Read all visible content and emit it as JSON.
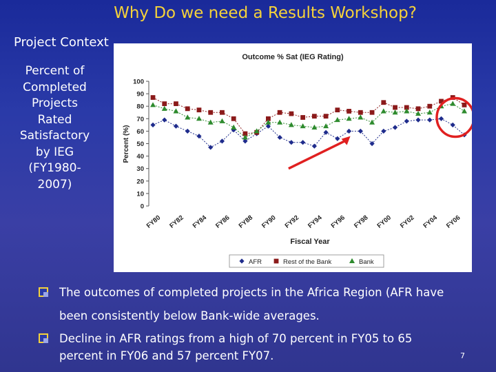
{
  "slide": {
    "title": "Why Do we need a Results Workshop?",
    "subtitle": "Project Context",
    "side_label_lines": [
      "Percent of",
      "Completed",
      "Projects",
      "Rated",
      "Satisfactory",
      "by IEG",
      "(FY1980-",
      "2007)"
    ],
    "bullets": [
      {
        "line1": "The outcomes of completed projects in the Africa Region (AFR have",
        "line2": "been consistently below Bank-wide averages."
      },
      {
        "line1": "Decline in AFR ratings from a high of 70 percent in FY05 to 65",
        "line2": "percent in FY06 and 57 percent FY07."
      }
    ],
    "page_number": "7"
  },
  "chart_data": {
    "type": "line",
    "title": "Outcome % Sat (IEG Rating)",
    "xlabel": "Fiscal Year",
    "ylabel": "Percent (%)",
    "ylim": [
      0,
      100
    ],
    "yticks": [
      0,
      10,
      20,
      30,
      40,
      50,
      60,
      70,
      80,
      90,
      100
    ],
    "x": [
      "FY80",
      "FY81",
      "FY82",
      "FY83",
      "FY84",
      "FY85",
      "FY86",
      "FY87",
      "FY88",
      "FY89",
      "FY90",
      "FY91",
      "FY92",
      "FY93",
      "FY94",
      "FY95",
      "FY96",
      "FY97",
      "FY98",
      "FY99",
      "FY00",
      "FY01",
      "FY02",
      "FY03",
      "FY04",
      "FY05",
      "FY06",
      "FY07"
    ],
    "xtick_labels": [
      "FY80",
      "FY82",
      "FY84",
      "FY86",
      "FY88",
      "FY90",
      "FY92",
      "FY94",
      "FY96",
      "FY98",
      "FY00",
      "FY02",
      "FY04",
      "FY06"
    ],
    "series": [
      {
        "name": "AFR",
        "color": "#1f2c8c",
        "marker": "diamond",
        "values": [
          65,
          69,
          64,
          60,
          56,
          47,
          52,
          61,
          52,
          58,
          64,
          55,
          51,
          51,
          48,
          59,
          54,
          60,
          60,
          50,
          60,
          63,
          68,
          69,
          69,
          70,
          65,
          57
        ]
      },
      {
        "name": "Rest of the Bank",
        "color": "#8b1a1a",
        "marker": "square",
        "values": [
          87,
          82,
          82,
          78,
          77,
          75,
          75,
          70,
          58,
          59,
          70,
          75,
          74,
          71,
          72,
          72,
          77,
          76,
          75,
          75,
          83,
          79,
          79,
          78,
          80,
          84,
          87,
          81
        ]
      },
      {
        "name": "Bank",
        "color": "#2e8b2e",
        "marker": "triangle",
        "values": [
          81,
          78,
          76,
          71,
          70,
          67,
          68,
          63,
          55,
          60,
          67,
          67,
          65,
          64,
          63,
          64,
          69,
          70,
          71,
          67,
          76,
          75,
          76,
          74,
          75,
          80,
          82,
          76
        ]
      }
    ],
    "legend_position": "bottom",
    "annotations": {
      "circle_color": "#e02020",
      "arrow_color": "#e02020"
    }
  }
}
